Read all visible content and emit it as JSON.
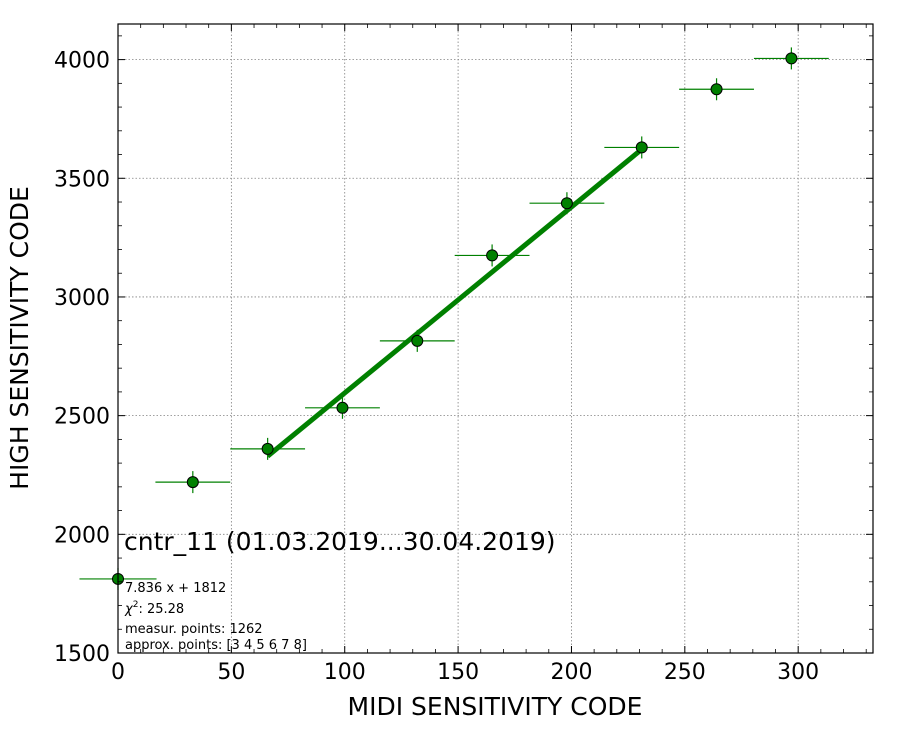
{
  "chart_data": {
    "type": "scatter",
    "xlabel": "MIDI SENSITIVITY CODE",
    "ylabel": "HIGH SENSITIVITY CODE",
    "xlim": [
      0,
      333
    ],
    "ylim": [
      1500,
      4150
    ],
    "x_ticks": [
      0,
      50,
      100,
      150,
      200,
      250,
      300
    ],
    "y_ticks": [
      1500,
      2000,
      2500,
      3000,
      3500,
      4000
    ],
    "grid": true,
    "points": [
      {
        "x": 0,
        "y": 1812,
        "xerr": 17
      },
      {
        "x": 33,
        "y": 2220,
        "xerr": 16.5
      },
      {
        "x": 66,
        "y": 2360,
        "xerr": 16.5
      },
      {
        "x": 99,
        "y": 2533,
        "xerr": 16.5
      },
      {
        "x": 132,
        "y": 2815,
        "xerr": 16.5
      },
      {
        "x": 165,
        "y": 3175,
        "xerr": 16.5
      },
      {
        "x": 198,
        "y": 3395,
        "xerr": 16.5
      },
      {
        "x": 231,
        "y": 3630,
        "xerr": 16.5
      },
      {
        "x": 264,
        "y": 3875,
        "xerr": 16.5
      },
      {
        "x": 297,
        "y": 4005,
        "xerr": 16.5
      }
    ],
    "fit_line": {
      "slope": 7.836,
      "intercept": 1812,
      "x_range": [
        66,
        231
      ]
    },
    "colors": {
      "marker": "#008000",
      "fit": "#008000",
      "grid": "#808080"
    },
    "annotation": {
      "title": "cntr_11 (01.03.2019...30.04.2019)",
      "equation": "7.836 x + 1812",
      "chi2_value": ": 25.28",
      "measur_points": "measur. points: 1262",
      "approx_points": "approx. points: [3 4 5 6 7 8]"
    }
  }
}
